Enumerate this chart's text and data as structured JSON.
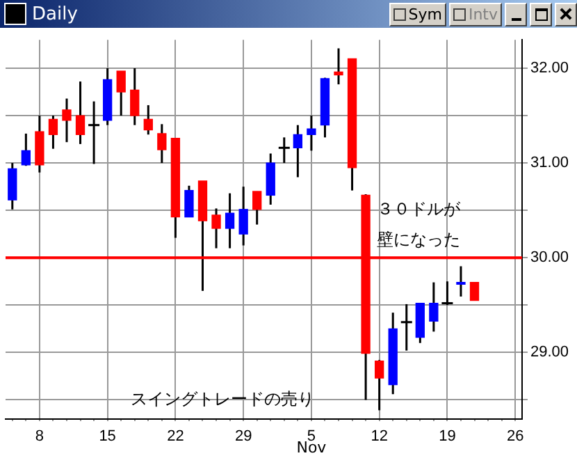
{
  "chart_data": {
    "type": "candlestick",
    "title": "Daily",
    "annotations": [
      "Sym",
      "Intv",
      "３０ドルが",
      "壁になった",
      "Nov",
      "スイングトレードの売り"
    ],
    "categories": [
      null,
      null,
      "8",
      null,
      null,
      null,
      null,
      "15",
      null,
      null,
      null,
      null,
      "22",
      null,
      null,
      null,
      null,
      "29",
      null,
      null,
      null,
      null,
      "5",
      null,
      null,
      null,
      null,
      "12",
      null,
      null,
      null,
      null,
      "19",
      null,
      null,
      null,
      null,
      "26"
    ],
    "ohlc": [
      [
        30.61,
        31.0,
        30.51,
        30.94
      ],
      [
        30.98,
        31.31,
        30.97,
        31.13
      ],
      [
        31.33,
        31.5,
        30.9,
        30.98
      ],
      [
        31.46,
        31.5,
        31.15,
        31.3
      ],
      [
        31.56,
        31.68,
        31.22,
        31.45
      ],
      [
        31.5,
        31.86,
        31.2,
        31.3
      ],
      [
        31.4,
        31.65,
        30.99,
        31.4
      ],
      [
        31.45,
        32.0,
        31.4,
        31.88
      ],
      [
        31.97,
        31.97,
        31.5,
        31.75
      ],
      [
        31.77,
        32.0,
        31.4,
        31.5
      ],
      [
        31.46,
        31.61,
        31.3,
        31.35
      ],
      [
        31.31,
        31.41,
        31.0,
        31.14
      ],
      [
        31.26,
        31.26,
        30.21,
        30.43
      ],
      [
        30.43,
        30.76,
        30.43,
        30.71
      ],
      [
        30.81,
        30.81,
        29.65,
        30.39
      ],
      [
        30.45,
        30.52,
        30.1,
        30.31
      ],
      [
        30.31,
        30.68,
        30.1,
        30.47
      ],
      [
        30.25,
        30.75,
        30.13,
        30.51
      ],
      [
        30.7,
        30.7,
        30.35,
        30.51
      ],
      [
        30.66,
        31.1,
        30.56,
        31.0
      ],
      [
        31.16,
        31.27,
        31.0,
        31.16
      ],
      [
        31.16,
        31.4,
        30.85,
        31.3
      ],
      [
        31.3,
        31.5,
        31.13,
        31.36
      ],
      [
        31.4,
        31.9,
        31.27,
        31.89
      ],
      [
        31.96,
        32.21,
        31.83,
        31.93
      ],
      [
        32.1,
        32.1,
        30.71,
        30.95
      ],
      [
        30.66,
        30.67,
        28.5,
        28.99
      ],
      [
        28.91,
        28.92,
        28.39,
        28.73
      ],
      [
        28.66,
        29.42,
        28.56,
        29.25
      ],
      [
        29.32,
        29.51,
        29.02,
        29.32
      ],
      [
        29.16,
        29.52,
        29.1,
        29.52
      ],
      [
        29.33,
        29.74,
        29.22,
        29.52
      ],
      [
        29.52,
        29.75,
        29.5,
        29.52
      ],
      [
        29.72,
        29.91,
        29.59,
        29.74
      ],
      [
        29.74,
        29.74,
        29.55,
        29.55
      ],
      null,
      null,
      null
    ],
    "colors": [
      "#0000ff",
      "#0000ff",
      "#ff0000",
      "#ff0000",
      "#ff0000",
      "#ff0000",
      "#000000",
      "#0000ff",
      "#ff0000",
      "#ff0000",
      "#ff0000",
      "#ff0000",
      "#ff0000",
      "#0000ff",
      "#ff0000",
      "#ff0000",
      "#0000ff",
      "#0000ff",
      "#ff0000",
      "#0000ff",
      "#000000",
      "#0000ff",
      "#0000ff",
      "#0000ff",
      "#ff0000",
      "#ff0000",
      "#ff0000",
      "#ff0000",
      "#0000ff",
      "#000000",
      "#0000ff",
      "#0000ff",
      "#000000",
      "#0000ff",
      "#ff0000",
      null,
      null,
      null
    ],
    "ylim": [
      28.3,
      32.3
    ],
    "yticks": [
      {
        "value": 28.5,
        "label": null
      },
      {
        "value": 29,
        "label": "29.00"
      },
      {
        "value": 29.5,
        "label": null
      },
      {
        "value": 30,
        "label": "30.00"
      },
      {
        "value": 30.5,
        "label": null
      },
      {
        "value": 31,
        "label": "31.00"
      },
      {
        "value": 31.5,
        "label": null
      },
      {
        "value": 32,
        "label": "32.00"
      }
    ],
    "grid": true,
    "line_style": "dotted",
    "ref_lines": [
      {
        "axis": "y",
        "value": 30,
        "color": "#ff0000"
      }
    ]
  }
}
